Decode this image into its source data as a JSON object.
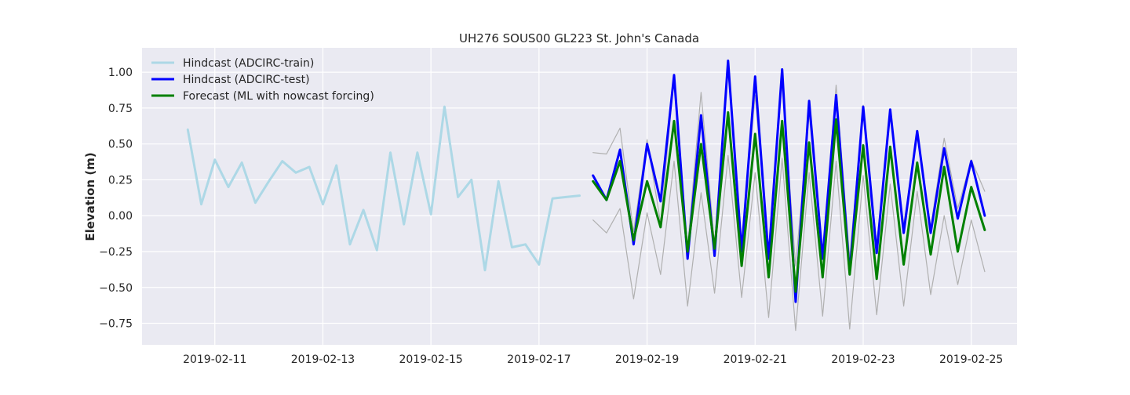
{
  "chart_data": {
    "type": "line",
    "title": "UH276 SOUS00 GL223 St. John's Canada",
    "xlabel": "",
    "ylabel": "Elevation (m)",
    "xlim": [
      "2019-02-09 15:40",
      "2019-02-25 20:20"
    ],
    "ylim": [
      -0.9,
      1.17
    ],
    "grid": true,
    "legend_position": "top-left",
    "x_ticks": [
      "2019-02-11",
      "2019-02-13",
      "2019-02-15",
      "2019-02-17",
      "2019-02-19",
      "2019-02-21",
      "2019-02-23",
      "2019-02-25"
    ],
    "y_ticks": [
      "−0.75",
      "−0.50",
      "−0.25",
      "0.00",
      "0.25",
      "0.50",
      "0.75",
      "1.00"
    ],
    "y_tick_values": [
      -0.75,
      -0.5,
      -0.25,
      0.0,
      0.25,
      0.5,
      0.75,
      1.0
    ],
    "background": "#eaeaf2",
    "series": [
      {
        "name": "Hindcast (ADCIRC-train)",
        "color": "#add8e6",
        "width": 3,
        "legend": true,
        "x": [
          "2019-02-10 12:00",
          "2019-02-10 18:00",
          "2019-02-11 00:00",
          "2019-02-11 06:00",
          "2019-02-11 12:00",
          "2019-02-11 18:00",
          "2019-02-12 00:00",
          "2019-02-12 06:00",
          "2019-02-12 12:00",
          "2019-02-12 18:00",
          "2019-02-13 00:00",
          "2019-02-13 06:00",
          "2019-02-13 12:00",
          "2019-02-13 18:00",
          "2019-02-14 00:00",
          "2019-02-14 06:00",
          "2019-02-14 12:00",
          "2019-02-14 18:00",
          "2019-02-15 00:00",
          "2019-02-15 06:00",
          "2019-02-15 12:00",
          "2019-02-15 18:00",
          "2019-02-16 00:00",
          "2019-02-16 06:00",
          "2019-02-16 12:00",
          "2019-02-16 18:00",
          "2019-02-17 00:00",
          "2019-02-17 06:00",
          "2019-02-17 12:00",
          "2019-02-17 18:00"
        ],
        "values": [
          0.6,
          0.08,
          0.39,
          0.2,
          0.37,
          0.09,
          0.24,
          0.38,
          0.3,
          0.34,
          0.08,
          0.35,
          -0.2,
          0.04,
          -0.24,
          0.44,
          -0.06,
          0.44,
          0.01,
          0.76,
          0.13,
          0.25,
          -0.38,
          0.24,
          -0.22,
          -0.2,
          -0.34,
          0.12,
          0.13,
          0.14
        ]
      },
      {
        "name": "Hindcast (ADCIRC-test)",
        "color": "#0000ff",
        "width": 3,
        "legend": true,
        "x": [
          "2019-02-18 00:00",
          "2019-02-18 06:00",
          "2019-02-18 12:00",
          "2019-02-18 18:00",
          "2019-02-19 00:00",
          "2019-02-19 06:00",
          "2019-02-19 12:00",
          "2019-02-19 18:00",
          "2019-02-20 00:00",
          "2019-02-20 06:00",
          "2019-02-20 12:00",
          "2019-02-20 18:00",
          "2019-02-21 00:00",
          "2019-02-21 06:00",
          "2019-02-21 12:00",
          "2019-02-21 18:00",
          "2019-02-22 00:00",
          "2019-02-22 06:00",
          "2019-02-22 12:00",
          "2019-02-22 18:00",
          "2019-02-23 00:00",
          "2019-02-23 06:00",
          "2019-02-23 12:00",
          "2019-02-23 18:00",
          "2019-02-24 00:00",
          "2019-02-24 06:00",
          "2019-02-24 12:00",
          "2019-02-24 18:00",
          "2019-02-25 00:00",
          "2019-02-25 06:00"
        ],
        "values": [
          0.28,
          0.11,
          0.46,
          -0.2,
          0.5,
          0.1,
          0.98,
          -0.3,
          0.7,
          -0.28,
          1.08,
          -0.25,
          0.97,
          -0.3,
          1.02,
          -0.6,
          0.8,
          -0.3,
          0.84,
          -0.4,
          0.76,
          -0.26,
          0.74,
          -0.12,
          0.59,
          -0.12,
          0.47,
          -0.02,
          0.38,
          0.0
        ]
      },
      {
        "name": "Forecast (ML with nowcast forcing)",
        "color": "#008000",
        "width": 3,
        "legend": true,
        "x": [
          "2019-02-18 00:00",
          "2019-02-18 06:00",
          "2019-02-18 12:00",
          "2019-02-18 18:00",
          "2019-02-19 00:00",
          "2019-02-19 06:00",
          "2019-02-19 12:00",
          "2019-02-19 18:00",
          "2019-02-20 00:00",
          "2019-02-20 06:00",
          "2019-02-20 12:00",
          "2019-02-20 18:00",
          "2019-02-21 00:00",
          "2019-02-21 06:00",
          "2019-02-21 12:00",
          "2019-02-21 18:00",
          "2019-02-22 00:00",
          "2019-02-22 06:00",
          "2019-02-22 12:00",
          "2019-02-22 18:00",
          "2019-02-23 00:00",
          "2019-02-23 06:00",
          "2019-02-23 12:00",
          "2019-02-23 18:00",
          "2019-02-24 00:00",
          "2019-02-24 06:00",
          "2019-02-24 12:00",
          "2019-02-24 18:00",
          "2019-02-25 00:00",
          "2019-02-25 06:00"
        ],
        "values": [
          0.24,
          0.11,
          0.38,
          -0.17,
          0.24,
          -0.08,
          0.66,
          -0.25,
          0.5,
          -0.23,
          0.72,
          -0.35,
          0.57,
          -0.43,
          0.66,
          -0.53,
          0.51,
          -0.43,
          0.67,
          -0.41,
          0.49,
          -0.44,
          0.48,
          -0.34,
          0.37,
          -0.27,
          0.34,
          -0.25,
          0.2,
          -0.1
        ]
      },
      {
        "name": "",
        "color": "#b0b0b0",
        "width": 1.2,
        "legend": false,
        "x": [
          "2019-02-18 00:00",
          "2019-02-18 06:00",
          "2019-02-18 12:00",
          "2019-02-18 18:00",
          "2019-02-19 00:00",
          "2019-02-19 06:00",
          "2019-02-19 12:00",
          "2019-02-19 18:00",
          "2019-02-20 00:00",
          "2019-02-20 06:00",
          "2019-02-20 12:00",
          "2019-02-20 18:00",
          "2019-02-21 00:00",
          "2019-02-21 06:00",
          "2019-02-21 12:00",
          "2019-02-21 18:00",
          "2019-02-22 00:00",
          "2019-02-22 06:00",
          "2019-02-22 12:00",
          "2019-02-22 18:00",
          "2019-02-23 00:00",
          "2019-02-23 06:00",
          "2019-02-23 12:00",
          "2019-02-23 18:00",
          "2019-02-24 00:00",
          "2019-02-24 06:00",
          "2019-02-24 12:00",
          "2019-02-24 18:00",
          "2019-02-25 00:00",
          "2019-02-25 06:00"
        ],
        "values": [
          0.44,
          0.43,
          0.61,
          -0.11,
          0.53,
          -0.05,
          0.96,
          -0.22,
          0.86,
          -0.2,
          1.02,
          -0.21,
          0.84,
          -0.26,
          0.93,
          -0.35,
          0.71,
          -0.3,
          0.91,
          -0.3,
          0.77,
          -0.2,
          0.73,
          -0.06,
          0.57,
          -0.08,
          0.54,
          0.05,
          0.39,
          0.17
        ]
      },
      {
        "name": "",
        "color": "#b0b0b0",
        "width": 1.2,
        "legend": false,
        "x": [
          "2019-02-18 00:00",
          "2019-02-18 06:00",
          "2019-02-18 12:00",
          "2019-02-18 18:00",
          "2019-02-19 00:00",
          "2019-02-19 06:00",
          "2019-02-19 12:00",
          "2019-02-19 18:00",
          "2019-02-20 00:00",
          "2019-02-20 06:00",
          "2019-02-20 12:00",
          "2019-02-20 18:00",
          "2019-02-21 00:00",
          "2019-02-21 06:00",
          "2019-02-21 12:00",
          "2019-02-21 18:00",
          "2019-02-22 00:00",
          "2019-02-22 06:00",
          "2019-02-22 12:00",
          "2019-02-22 18:00",
          "2019-02-23 00:00",
          "2019-02-23 06:00",
          "2019-02-23 12:00",
          "2019-02-23 18:00",
          "2019-02-24 00:00",
          "2019-02-24 06:00",
          "2019-02-24 12:00",
          "2019-02-24 18:00",
          "2019-02-25 00:00",
          "2019-02-25 06:00"
        ],
        "values": [
          -0.03,
          -0.12,
          0.05,
          -0.58,
          0.02,
          -0.41,
          0.38,
          -0.63,
          0.16,
          -0.54,
          0.42,
          -0.57,
          0.3,
          -0.71,
          0.4,
          -0.8,
          0.3,
          -0.7,
          0.38,
          -0.79,
          0.28,
          -0.69,
          0.22,
          -0.63,
          0.17,
          -0.55,
          0.0,
          -0.48,
          -0.03,
          -0.39
        ]
      }
    ]
  }
}
